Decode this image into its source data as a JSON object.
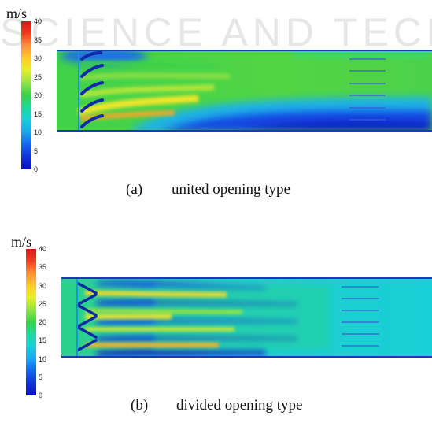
{
  "watermark": "SCIENCE AND TECH",
  "panels": [
    {
      "id": "a",
      "unit": "m/s",
      "colorbar_ticks": [
        "40",
        "35",
        "30",
        "25",
        "20",
        "15",
        "10",
        "5",
        "0"
      ],
      "caption_label": "(a)",
      "caption_text": "united opening type"
    },
    {
      "id": "b",
      "unit": "m/s",
      "colorbar_ticks": [
        "40",
        "35",
        "30",
        "25",
        "20",
        "15",
        "10",
        "5",
        "0"
      ],
      "caption_label": "(b)",
      "caption_text": "divided opening type"
    }
  ],
  "colors": {
    "field_green": "#3fd24a",
    "field_cyan": "#19cfd8",
    "field_blue": "#1546e6",
    "jet_yellow": "#f0e62a"
  }
}
